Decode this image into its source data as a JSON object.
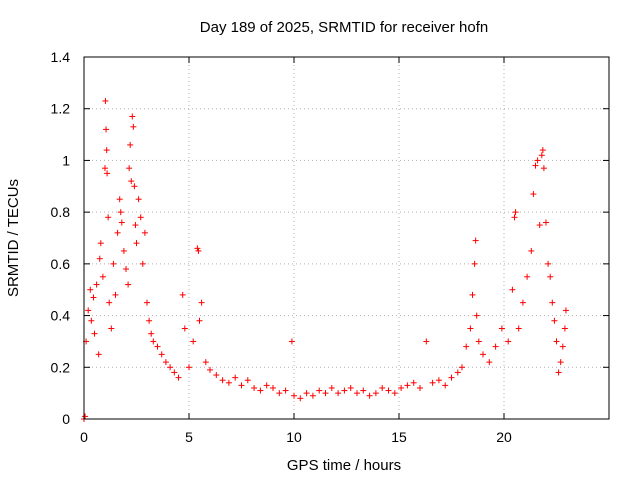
{
  "chart_data": {
    "type": "scatter",
    "title": "Day 189 of 2025, SRMTID for receiver hofn",
    "xlabel": "GPS time / hours",
    "ylabel": "SRMTID / TECUs",
    "xlim": [
      0,
      25
    ],
    "ylim": [
      0,
      1.4
    ],
    "xticks": [
      0,
      5,
      10,
      15,
      20
    ],
    "xtick_labels": [
      "0",
      "5",
      "10",
      "15",
      "20"
    ],
    "yticks": [
      0,
      0.2,
      0.4,
      0.6,
      0.8,
      1,
      1.2,
      1.4
    ],
    "ytick_labels": [
      "0",
      "0.2",
      "0.4",
      "0.6",
      "0.8",
      "1",
      "1.2",
      "1.4"
    ],
    "grid": true,
    "marker": "+",
    "color": "#ff0000",
    "series": [
      {
        "name": "SRMTID",
        "points": [
          [
            0.0,
            0.0
          ],
          [
            0.05,
            0.01
          ],
          [
            0.1,
            0.3
          ],
          [
            0.2,
            0.42
          ],
          [
            0.3,
            0.5
          ],
          [
            0.35,
            0.38
          ],
          [
            0.45,
            0.47
          ],
          [
            0.5,
            0.33
          ],
          [
            0.6,
            0.52
          ],
          [
            0.7,
            0.25
          ],
          [
            0.75,
            0.62
          ],
          [
            0.8,
            0.68
          ],
          [
            0.9,
            0.55
          ],
          [
            1.0,
            0.97
          ],
          [
            1.02,
            1.23
          ],
          [
            1.05,
            1.12
          ],
          [
            1.08,
            1.04
          ],
          [
            1.1,
            0.95
          ],
          [
            1.15,
            0.78
          ],
          [
            1.2,
            0.45
          ],
          [
            1.3,
            0.35
          ],
          [
            1.4,
            0.6
          ],
          [
            1.5,
            0.48
          ],
          [
            1.6,
            0.72
          ],
          [
            1.7,
            0.85
          ],
          [
            1.75,
            0.8
          ],
          [
            1.8,
            0.76
          ],
          [
            1.9,
            0.65
          ],
          [
            2.0,
            0.58
          ],
          [
            2.1,
            0.52
          ],
          [
            2.15,
            0.97
          ],
          [
            2.2,
            1.06
          ],
          [
            2.25,
            0.92
          ],
          [
            2.3,
            1.17
          ],
          [
            2.35,
            1.13
          ],
          [
            2.4,
            0.9
          ],
          [
            2.45,
            0.75
          ],
          [
            2.5,
            0.68
          ],
          [
            2.6,
            0.85
          ],
          [
            2.7,
            0.78
          ],
          [
            2.8,
            0.6
          ],
          [
            2.9,
            0.72
          ],
          [
            3.0,
            0.45
          ],
          [
            3.1,
            0.38
          ],
          [
            3.2,
            0.33
          ],
          [
            3.3,
            0.3
          ],
          [
            3.5,
            0.28
          ],
          [
            3.7,
            0.25
          ],
          [
            3.9,
            0.22
          ],
          [
            4.1,
            0.2
          ],
          [
            4.3,
            0.18
          ],
          [
            4.5,
            0.16
          ],
          [
            4.7,
            0.48
          ],
          [
            4.8,
            0.35
          ],
          [
            5.0,
            0.2
          ],
          [
            5.2,
            0.3
          ],
          [
            5.4,
            0.66
          ],
          [
            5.45,
            0.65
          ],
          [
            5.5,
            0.38
          ],
          [
            5.6,
            0.45
          ],
          [
            5.8,
            0.22
          ],
          [
            6.0,
            0.19
          ],
          [
            6.3,
            0.17
          ],
          [
            6.6,
            0.15
          ],
          [
            6.9,
            0.14
          ],
          [
            7.2,
            0.16
          ],
          [
            7.5,
            0.13
          ],
          [
            7.8,
            0.15
          ],
          [
            8.1,
            0.12
          ],
          [
            8.4,
            0.11
          ],
          [
            8.7,
            0.13
          ],
          [
            9.0,
            0.12
          ],
          [
            9.3,
            0.1
          ],
          [
            9.6,
            0.11
          ],
          [
            9.9,
            0.3
          ],
          [
            10.0,
            0.09
          ],
          [
            10.3,
            0.08
          ],
          [
            10.6,
            0.1
          ],
          [
            10.9,
            0.09
          ],
          [
            11.2,
            0.11
          ],
          [
            11.5,
            0.1
          ],
          [
            11.8,
            0.12
          ],
          [
            12.1,
            0.1
          ],
          [
            12.4,
            0.11
          ],
          [
            12.7,
            0.12
          ],
          [
            13.0,
            0.1
          ],
          [
            13.3,
            0.11
          ],
          [
            13.6,
            0.09
          ],
          [
            13.9,
            0.1
          ],
          [
            14.2,
            0.12
          ],
          [
            14.5,
            0.11
          ],
          [
            14.8,
            0.1
          ],
          [
            15.1,
            0.12
          ],
          [
            15.4,
            0.13
          ],
          [
            15.7,
            0.14
          ],
          [
            16.0,
            0.12
          ],
          [
            16.3,
            0.3
          ],
          [
            16.6,
            0.14
          ],
          [
            16.9,
            0.15
          ],
          [
            17.2,
            0.13
          ],
          [
            17.5,
            0.16
          ],
          [
            17.8,
            0.18
          ],
          [
            18.0,
            0.2
          ],
          [
            18.2,
            0.28
          ],
          [
            18.4,
            0.35
          ],
          [
            18.5,
            0.48
          ],
          [
            18.6,
            0.6
          ],
          [
            18.65,
            0.69
          ],
          [
            18.7,
            0.4
          ],
          [
            18.8,
            0.3
          ],
          [
            19.0,
            0.25
          ],
          [
            19.3,
            0.22
          ],
          [
            19.6,
            0.28
          ],
          [
            19.9,
            0.35
          ],
          [
            20.2,
            0.3
          ],
          [
            20.4,
            0.5
          ],
          [
            20.5,
            0.78
          ],
          [
            20.55,
            0.8
          ],
          [
            20.7,
            0.35
          ],
          [
            20.9,
            0.45
          ],
          [
            21.1,
            0.55
          ],
          [
            21.3,
            0.65
          ],
          [
            21.4,
            0.87
          ],
          [
            21.5,
            0.98
          ],
          [
            21.6,
            1.0
          ],
          [
            21.7,
            0.75
          ],
          [
            21.8,
            1.02
          ],
          [
            21.85,
            1.04
          ],
          [
            21.9,
            0.97
          ],
          [
            22.0,
            0.76
          ],
          [
            22.1,
            0.6
          ],
          [
            22.2,
            0.55
          ],
          [
            22.3,
            0.45
          ],
          [
            22.4,
            0.38
          ],
          [
            22.5,
            0.3
          ],
          [
            22.6,
            0.18
          ],
          [
            22.7,
            0.22
          ],
          [
            22.8,
            0.28
          ],
          [
            22.9,
            0.35
          ],
          [
            22.95,
            0.42
          ]
        ]
      }
    ]
  }
}
